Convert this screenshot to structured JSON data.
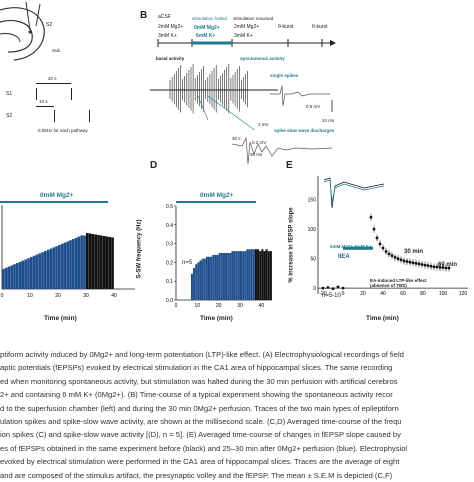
{
  "panels": {
    "a": {
      "s1": "S1",
      "s2": "S2",
      "interval_20s": "20 s",
      "interval_10s": "10 s",
      "freq_note": "0.05Hz for each pathway",
      "small_label": "Sub"
    },
    "b": {
      "label": "B",
      "row1_labels": [
        "aCSF",
        "2mM Mg2+",
        "3mM K+"
      ],
      "halted": "stimulation halted",
      "resumed": "stimulation resumed",
      "zero_mg": "0mM Mg2+",
      "six_k": "6mM K+",
      "mid_labels": [
        "2mM Mg2+",
        "3mM K+"
      ],
      "theta1": "θ-burst",
      "theta2": "θ-burst",
      "basal": "basal activity",
      "spontaneous": "spontaneous activity",
      "single_spikes": "single spikes",
      "sw_discharges": "spike-slow wave discharges",
      "scale_05mv": "0.5 mV",
      "scale_1mv": "1 mV",
      "scale_30s": "30 s",
      "scale_02mv": "0.2 mV",
      "scale_10ms": "10 ms",
      "scale_20ms": "20 ms"
    },
    "c": {
      "drug_label": "0mM Mg2+",
      "xlabel": "Time (min)",
      "ticks": [
        "0",
        "10",
        "20",
        "30",
        "40"
      ]
    },
    "d": {
      "label": "D",
      "drug_label": "0mM Mg2+",
      "ylabel": "S-SW frequency (Hz)",
      "xlabel": "Time (min)",
      "n": "n=5",
      "yticks": [
        "0.0",
        "0.1",
        "0.2",
        "0.3",
        "0.4",
        "0.5"
      ],
      "xticks": [
        "0",
        "10",
        "20",
        "30",
        "40"
      ]
    },
    "e": {
      "label": "E",
      "ylabel": "% increase in fEPSP slope",
      "xlabel": "Time (min)",
      "yticks": [
        "0",
        "50",
        "100",
        "150"
      ],
      "xticks": [
        "-20",
        "0",
        "20",
        "40",
        "60",
        "80",
        "100",
        "120"
      ],
      "iiea": "IIEA",
      "mg_k": "0mM Mg2+ 6mM K+",
      "ltp_note": "EA-induced LTP-like effect (absence of TBS)",
      "t30": "30 min",
      "t60": "60 min",
      "n": "n=5-10"
    }
  },
  "chart_data": [
    {
      "type": "bar",
      "panel": "D",
      "ylabel": "S-SW frequency (Hz)",
      "xlabel": "Time (min)",
      "ylim": [
        0,
        0.5
      ],
      "xlim": [
        0,
        45
      ],
      "series": [
        {
          "values_blue": [
            0.14,
            0.17,
            0.19,
            0.2,
            0.21,
            0.22,
            0.22,
            0.23,
            0.23,
            0.23,
            0.24,
            0.24,
            0.24,
            0.25,
            0.25,
            0.25,
            0.25,
            0.25,
            0.25,
            0.26,
            0.26,
            0.26,
            0.26,
            0.26,
            0.26,
            0.26,
            0.27,
            0.27,
            0.27,
            0.27
          ]
        },
        {
          "values_black": [
            0.27,
            0.27,
            0.26,
            0.27,
            0.26,
            0.27,
            0.26,
            0.26
          ]
        }
      ]
    },
    {
      "type": "scatter",
      "panel": "E",
      "ylabel": "% increase in fEPSP slope",
      "xlabel": "Time (min)",
      "ylim": [
        -10,
        190
      ],
      "xlim": [
        -25,
        125
      ],
      "x_baseline": [
        -20,
        -15,
        -10,
        -5,
        0
      ],
      "y_baseline": [
        0,
        1,
        -1,
        2,
        0
      ],
      "x": [
        28,
        31,
        34,
        37,
        40,
        43,
        46,
        49,
        52,
        55,
        58,
        61,
        64,
        67,
        70,
        73,
        76,
        79,
        82,
        85,
        88,
        91,
        94,
        97,
        100,
        103,
        106
      ],
      "y": [
        120,
        100,
        85,
        75,
        68,
        62,
        58,
        55,
        52,
        50,
        48,
        46,
        45,
        44,
        43,
        42,
        41,
        40,
        39,
        38,
        37,
        36,
        36,
        35,
        35,
        34,
        34
      ]
    }
  ],
  "caption_lines": [
    "ptiform activity induced by 0Mg2+ and long-term potentiation (LTP)-like effect. (A) Electrophysiological recordings of field",
    "aptic potentials (fEPSPs) evoked by electrical stimulation in the CA1 area of hippocampal slices. The same recording",
    "ed when monitoring spontaneous activity, but stimulation was halted during the 30 min perfusion with artificial cerebros",
    "2+ and containing 6 mM K+ (0Mg2+). (B) Time-course of a typical experiment showing the spontaneous activity recor",
    "d to the superfusion chamber (left) and during the 30 min 0Mg2+ perfusion. Traces of the two main types of epileptiforn",
    "ulation spikes and spike-slow wave activity, are shown at the millisecond scale. (C,D) Averaged time-course of the frequ",
    "ion spikes (C) and spike-slow wave activity [(D), n = 5]. (E) Averaged time-course of changes in fEPSP slope caused by",
    "es of fEPSPs obtained in the same experiment before (black) and 25–30 min after 0Mg2+ perfusion (blue). Electrophysiol",
    "evoked by electrical stimulation were performed in the CA1 area of hippocampal slices. Traces are the average of eight",
    "and are composed of the stimulus artifact, the presynaptic volley and the fEPSP. The mean ± S.E.M is depicted (C,F)"
  ]
}
